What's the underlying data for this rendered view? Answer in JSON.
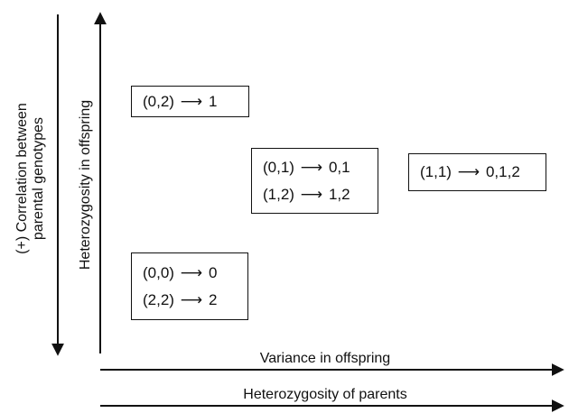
{
  "axes": {
    "parental_correlation_label": [
      "(+) Correlation between",
      "parental genotypes"
    ],
    "offspring_heterozygosity_label": "Heterozygosity in offspring",
    "offspring_variance_label": "Variance in offspring",
    "parent_heterozygosity_label": "Heterozygosity of parents"
  },
  "boxes": [
    {
      "name": "box-02",
      "rows": [
        {
          "pair": "(0,2)",
          "result": "1"
        }
      ]
    },
    {
      "name": "box-01-12",
      "rows": [
        {
          "pair": "(0,1)",
          "result": "0,1"
        },
        {
          "pair": "(1,2)",
          "result": "1,2"
        }
      ]
    },
    {
      "name": "box-11",
      "rows": [
        {
          "pair": "(1,1)",
          "result": "0,1,2"
        }
      ]
    },
    {
      "name": "box-00-22",
      "rows": [
        {
          "pair": "(0,0)",
          "result": "0"
        },
        {
          "pair": "(2,2)",
          "result": "2"
        }
      ]
    }
  ]
}
